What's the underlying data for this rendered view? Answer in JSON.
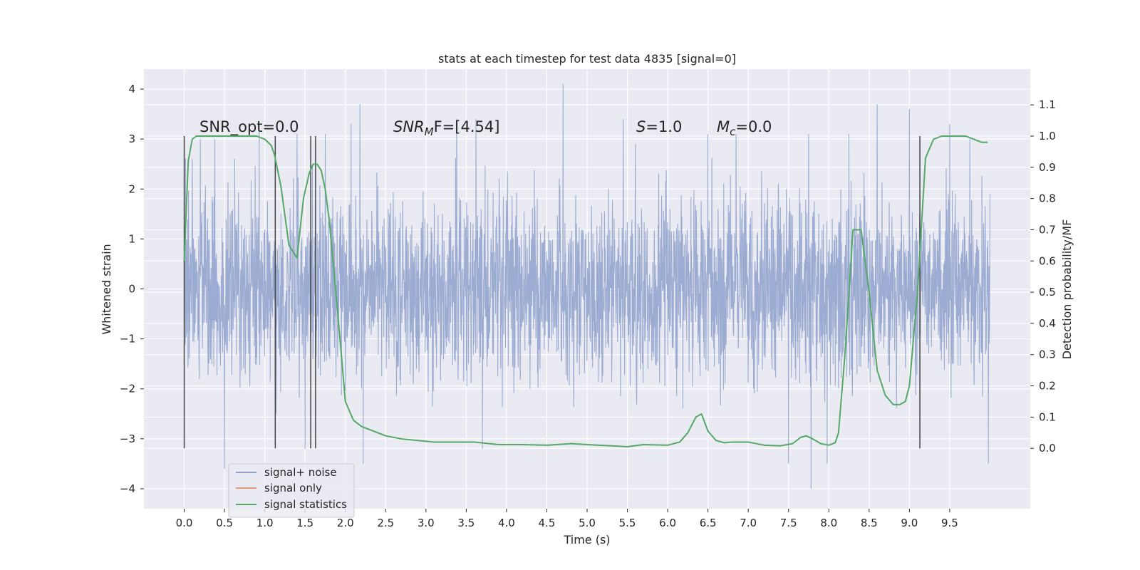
{
  "chart_data": {
    "type": "line",
    "title": "stats at each timestep for test data 4835 [signal=0]",
    "xlabel": "Time (s)",
    "ylabel": "Whitened strain",
    "y2label": "Detection probability/MF",
    "xlim": [
      -0.5,
      10.5
    ],
    "ylim": [
      -4.4,
      4.4
    ],
    "y2lim": [
      -0.1935,
      1.2145
    ],
    "x_ticks": [
      "0.0",
      "0.5",
      "1.0",
      "1.5",
      "2.0",
      "2.5",
      "3.0",
      "3.5",
      "4.0",
      "4.5",
      "5.0",
      "5.5",
      "6.0",
      "6.5",
      "7.0",
      "7.5",
      "8.0",
      "8.5",
      "9.0",
      "9.5"
    ],
    "y_ticks": [
      "4",
      "3",
      "2",
      "1",
      "0",
      "−1",
      "−2",
      "−3",
      "−4"
    ],
    "y2_ticks": [
      "1.1",
      "1.0",
      "0.9",
      "0.8",
      "0.7",
      "0.6",
      "0.5",
      "0.4",
      "0.3",
      "0.2",
      "0.1",
      "0.0"
    ],
    "grid": true,
    "legend_position": "lower-left",
    "annotations": {
      "snr_opt": "SNR_opt=0.0",
      "snr_mf_base": "SNR",
      "snr_mf_sub": "M",
      "snr_mf_rest": "F=[4.54]",
      "s_base": "S",
      "s_rest": "=1.0",
      "mc_base": "M",
      "mc_sub": "c",
      "mc_rest": "=0.0"
    },
    "series": [
      {
        "name": "signal+ noise",
        "color": "#8da0cb",
        "axis": "left",
        "duration": [
          0,
          10
        ],
        "envelope_typical": [
          -2.0,
          2.0
        ],
        "peaks": [
          [
            0.1,
            2.6
          ],
          [
            0.2,
            3.0
          ],
          [
            0.38,
            3.0
          ],
          [
            0.5,
            -3.6
          ],
          [
            0.93,
            3.3
          ],
          [
            1.4,
            3.1
          ],
          [
            1.5,
            -3.2
          ],
          [
            1.75,
            3.1
          ],
          [
            2.07,
            3.3
          ],
          [
            2.18,
            3.7
          ],
          [
            2.22,
            -3.5
          ],
          [
            3.38,
            3.4
          ],
          [
            3.62,
            3.4
          ],
          [
            3.7,
            -3.2
          ],
          [
            4.7,
            4.1
          ],
          [
            5.45,
            3.4
          ],
          [
            5.6,
            -3.2
          ],
          [
            5.6,
            2.9
          ],
          [
            6.5,
            3.1
          ],
          [
            6.85,
            3.1
          ],
          [
            7.5,
            -3.5
          ],
          [
            7.75,
            3.1
          ],
          [
            7.78,
            -4.0
          ],
          [
            7.98,
            -3.5
          ],
          [
            8.25,
            3.1
          ],
          [
            8.6,
            3.7
          ],
          [
            9.0,
            3.6
          ],
          [
            9.5,
            3.3
          ],
          [
            9.75,
            3.0
          ],
          [
            9.98,
            -3.5
          ]
        ]
      },
      {
        "name": "signal only",
        "color": "#dd8452",
        "axis": "left",
        "x": [],
        "y": []
      },
      {
        "name": "signal statistics",
        "color": "#55a868",
        "axis": "right",
        "x": [
          0.0,
          0.05,
          0.1,
          0.15,
          0.2,
          0.3,
          0.5,
          0.7,
          0.9,
          1.0,
          1.08,
          1.12,
          1.2,
          1.3,
          1.4,
          1.48,
          1.55,
          1.6,
          1.65,
          1.7,
          1.75,
          1.8,
          1.9,
          2.0,
          2.1,
          2.2,
          2.3,
          2.5,
          2.7,
          2.9,
          3.1,
          3.3,
          3.6,
          3.9,
          4.2,
          4.5,
          4.8,
          5.0,
          5.3,
          5.5,
          5.7,
          6.0,
          6.15,
          6.25,
          6.35,
          6.42,
          6.5,
          6.6,
          6.7,
          6.8,
          7.0,
          7.2,
          7.4,
          7.55,
          7.65,
          7.72,
          7.8,
          7.9,
          8.0,
          8.08,
          8.12,
          8.2,
          8.3,
          8.4,
          8.5,
          8.6,
          8.7,
          8.8,
          8.88,
          8.95,
          9.0,
          9.1,
          9.2,
          9.3,
          9.4,
          9.5,
          9.6,
          9.7,
          9.8,
          9.9,
          9.97
        ],
        "y": [
          0.6,
          0.92,
          0.99,
          1.0,
          1.0,
          1.0,
          1.0,
          1.0,
          1.0,
          0.99,
          0.97,
          0.94,
          0.84,
          0.65,
          0.61,
          0.8,
          0.88,
          0.91,
          0.91,
          0.89,
          0.83,
          0.73,
          0.45,
          0.15,
          0.09,
          0.07,
          0.06,
          0.04,
          0.03,
          0.025,
          0.02,
          0.02,
          0.02,
          0.012,
          0.012,
          0.01,
          0.015,
          0.012,
          0.008,
          0.005,
          0.012,
          0.01,
          0.02,
          0.05,
          0.1,
          0.11,
          0.055,
          0.025,
          0.018,
          0.02,
          0.02,
          0.01,
          0.008,
          0.015,
          0.035,
          0.04,
          0.03,
          0.015,
          0.01,
          0.018,
          0.05,
          0.3,
          0.7,
          0.7,
          0.5,
          0.25,
          0.17,
          0.14,
          0.14,
          0.15,
          0.2,
          0.5,
          0.93,
          0.99,
          1.0,
          1.0,
          1.0,
          1.0,
          0.99,
          0.98,
          0.98
        ]
      }
    ],
    "vertical_markers": {
      "color": "#444444",
      "x": [
        0.0,
        1.13,
        1.57,
        1.63,
        9.13
      ]
    }
  }
}
